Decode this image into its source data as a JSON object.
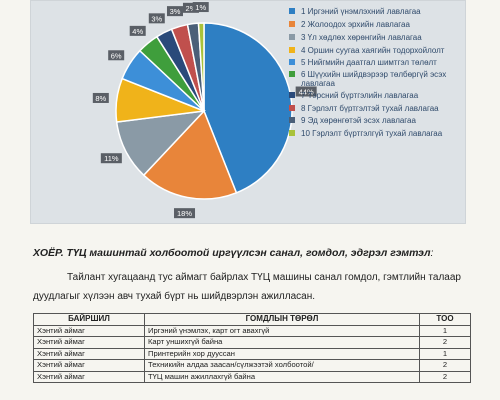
{
  "chart_data": {
    "type": "pie",
    "slices": [
      {
        "label": "1 Иргэний үнэмлэхний лавлагаа",
        "value": 44,
        "value_label": "44%",
        "color": "#2e7fc3"
      },
      {
        "label": "2 Жолоодох эрхийн лавлагаа",
        "value": 18,
        "value_label": "18%",
        "color": "#e8853a"
      },
      {
        "label": "3 Үл хөдлөх хөрөнгийн лавлагаа",
        "value": 11,
        "value_label": "11%",
        "color": "#8a9aa6"
      },
      {
        "label": "4 Оршин суугаа хаягийн тодорхойлолт",
        "value": 8,
        "value_label": "8%",
        "color": "#f0b31a"
      },
      {
        "label": "5 Нийгмийн даатгал шимтгэл төлөлт",
        "value": 6,
        "value_label": "6%",
        "color": "#3d8fd8"
      },
      {
        "label": "6 Шүүхийн шийдвэрээр төлбөргүй эсэх лавлагаа",
        "value": 4,
        "value_label": "4%",
        "color": "#3f9e3c"
      },
      {
        "label": "7 Тэрсний бүртгэлийн лавлагаа",
        "value": 3,
        "value_label": "3%",
        "color": "#2a4a7a"
      },
      {
        "label": "8 Гэрлэлт бүртгэлтэй тухай лавлагаа",
        "value": 3,
        "value_label": "3%",
        "color": "#c0504d"
      },
      {
        "label": "9 Эд хөрөнгөтэй эсэх лавлагаа",
        "value": 2,
        "value_label": "2%",
        "color": "#4a5f78"
      },
      {
        "label": "10 Гэрлэлт бүртгэлгүй тухай лавлагаа",
        "value": 1,
        "value_label": "1%",
        "color": "#a9c23a"
      }
    ]
  },
  "section": {
    "heading_bold": "ХОЁР.  ТҮЦ машинтай холбоотой иргүүлсэн санал, гомдол, эдгрэл гэмтэл",
    "heading_tail": ":",
    "paragraph": "Тайлант хугацаанд тус аймагт байрлах ТҮЦ машины санал гомдол, гэмтлийн талаар дуудлагыг хүлээн авч тухай бүрт нь шийдвэрлэн ажилласан."
  },
  "table": {
    "headers": [
      "БАЙРШИЛ",
      "ГОМДЛЫН ТӨРӨЛ",
      "ТОО"
    ],
    "rows": [
      [
        "Хэнтий аймаг",
        "Иргэний үнэмлэх, карт огт авахгүй",
        "1"
      ],
      [
        "Хэнтий аймаг",
        "Карт уншихгүй байна",
        "2"
      ],
      [
        "Хэнтий аймаг",
        "Принтерийн хор дууссан",
        "1"
      ],
      [
        "Хэнтий аймаг",
        "Техникийн алдаа заасан/сүлжээтэй холбоотой/",
        "2"
      ],
      [
        "Хэнтий аймаг",
        "ТҮЦ машин ажиллахгүй байна",
        "2"
      ]
    ]
  }
}
